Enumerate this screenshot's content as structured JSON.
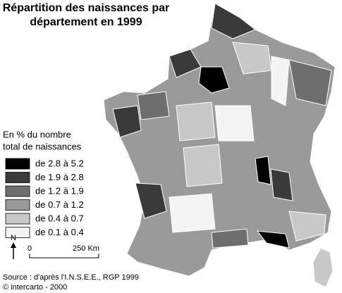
{
  "title_lines": [
    "Répartition des naissances par",
    "département en 1999"
  ],
  "legend": {
    "title_lines": [
      "En % du nombre",
      "total de naissances"
    ],
    "items": [
      {
        "label": "de 2.8 à 5.2",
        "color": "#000000"
      },
      {
        "label": "de 1.9 à 2.8",
        "color": "#3a3a3a"
      },
      {
        "label": "de 1.2 à 1.9",
        "color": "#6e6e6e"
      },
      {
        "label": "de 0.7 à 1.2",
        "color": "#9a9a9a"
      },
      {
        "label": "de 0.4 à 0.7",
        "color": "#c8c8c8"
      },
      {
        "label": "de 0.1 à 0.4",
        "color": "#f4f4f4"
      }
    ]
  },
  "north": "N",
  "scale": {
    "start": "0",
    "end": "250 Km"
  },
  "source": "Source : d'après l'I.N.S.E.E., RGP 1999",
  "copyright": "© intercarto - 2000"
}
